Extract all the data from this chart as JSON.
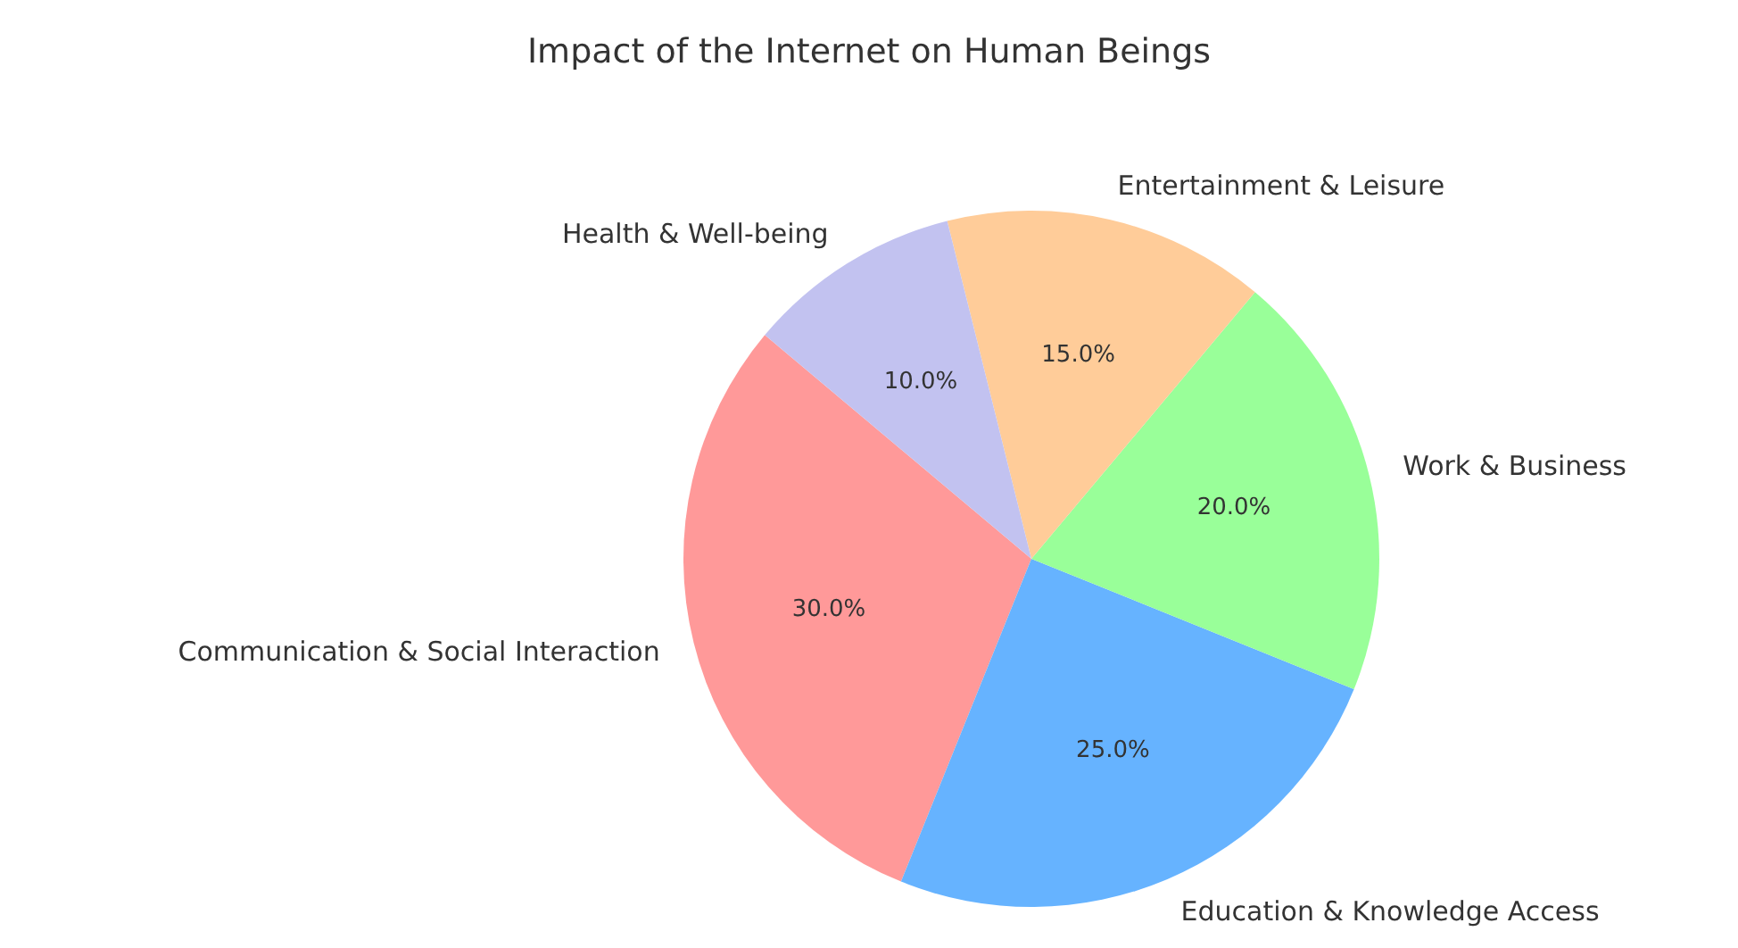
{
  "chart_data": {
    "type": "pie",
    "title": "Impact of the Internet on Human Beings",
    "categories": [
      "Communication & Social Interaction",
      "Education & Knowledge Access",
      "Work & Business",
      "Entertainment & Leisure",
      "Health & Well-being"
    ],
    "values": [
      30,
      25,
      20,
      15,
      10
    ],
    "colors": [
      "#ff9999",
      "#66b3ff",
      "#99ff99",
      "#ffcc99",
      "#c2c2f0"
    ],
    "value_labels": [
      "30.0%",
      "25.0%",
      "20.0%",
      "15.0%",
      "10.0%"
    ],
    "legend": false
  }
}
